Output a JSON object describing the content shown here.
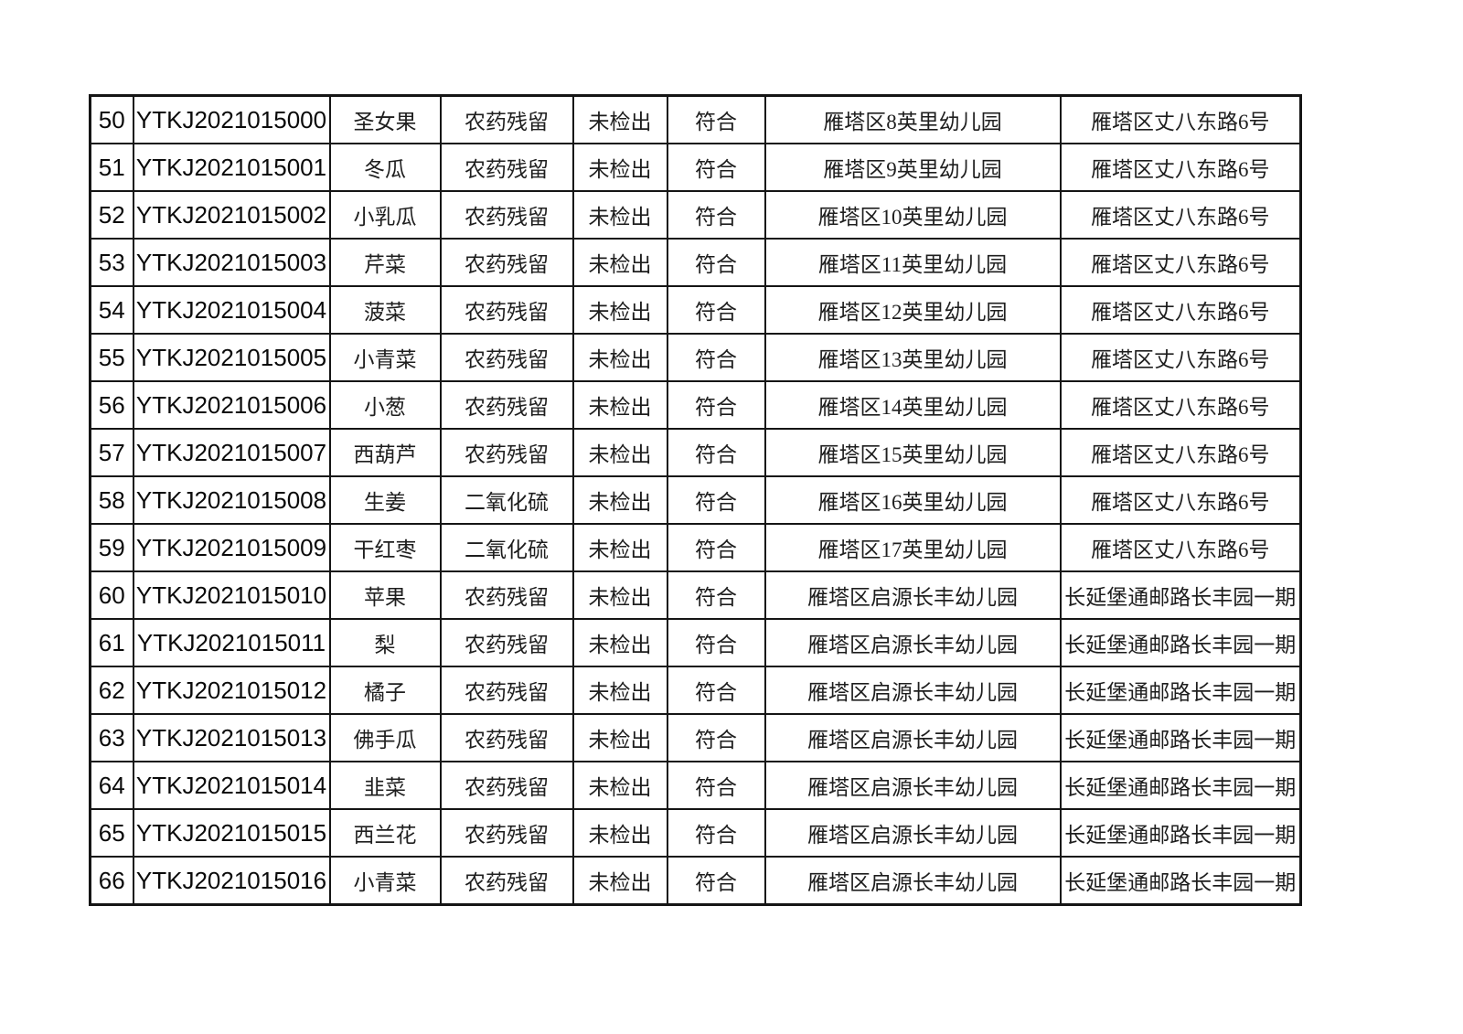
{
  "colors": {
    "background": "#ffffff",
    "table_border": "#151515",
    "text": "#1e1e1e"
  },
  "table": {
    "rows": [
      [
        "50",
        "YTKJ2021015000",
        "圣女果",
        "农药残留",
        "未检出",
        "符合",
        "雁塔区8英里幼儿园",
        "雁塔区丈八东路6号"
      ],
      [
        "51",
        "YTKJ2021015001",
        "冬瓜",
        "农药残留",
        "未检出",
        "符合",
        "雁塔区9英里幼儿园",
        "雁塔区丈八东路6号"
      ],
      [
        "52",
        "YTKJ2021015002",
        "小乳瓜",
        "农药残留",
        "未检出",
        "符合",
        "雁塔区10英里幼儿园",
        "雁塔区丈八东路6号"
      ],
      [
        "53",
        "YTKJ2021015003",
        "芹菜",
        "农药残留",
        "未检出",
        "符合",
        "雁塔区11英里幼儿园",
        "雁塔区丈八东路6号"
      ],
      [
        "54",
        "YTKJ2021015004",
        "菠菜",
        "农药残留",
        "未检出",
        "符合",
        "雁塔区12英里幼儿园",
        "雁塔区丈八东路6号"
      ],
      [
        "55",
        "YTKJ2021015005",
        "小青菜",
        "农药残留",
        "未检出",
        "符合",
        "雁塔区13英里幼儿园",
        "雁塔区丈八东路6号"
      ],
      [
        "56",
        "YTKJ2021015006",
        "小葱",
        "农药残留",
        "未检出",
        "符合",
        "雁塔区14英里幼儿园",
        "雁塔区丈八东路6号"
      ],
      [
        "57",
        "YTKJ2021015007",
        "西葫芦",
        "农药残留",
        "未检出",
        "符合",
        "雁塔区15英里幼儿园",
        "雁塔区丈八东路6号"
      ],
      [
        "58",
        "YTKJ2021015008",
        "生姜",
        "二氧化硫",
        "未检出",
        "符合",
        "雁塔区16英里幼儿园",
        "雁塔区丈八东路6号"
      ],
      [
        "59",
        "YTKJ2021015009",
        "干红枣",
        "二氧化硫",
        "未检出",
        "符合",
        "雁塔区17英里幼儿园",
        "雁塔区丈八东路6号"
      ],
      [
        "60",
        "YTKJ2021015010",
        "苹果",
        "农药残留",
        "未检出",
        "符合",
        "雁塔区启源长丰幼儿园",
        "长延堡通邮路长丰园一期"
      ],
      [
        "61",
        "YTKJ2021015011",
        "梨",
        "农药残留",
        "未检出",
        "符合",
        "雁塔区启源长丰幼儿园",
        "长延堡通邮路长丰园一期"
      ],
      [
        "62",
        "YTKJ2021015012",
        "橘子",
        "农药残留",
        "未检出",
        "符合",
        "雁塔区启源长丰幼儿园",
        "长延堡通邮路长丰园一期"
      ],
      [
        "63",
        "YTKJ2021015013",
        "佛手瓜",
        "农药残留",
        "未检出",
        "符合",
        "雁塔区启源长丰幼儿园",
        "长延堡通邮路长丰园一期"
      ],
      [
        "64",
        "YTKJ2021015014",
        "韭菜",
        "农药残留",
        "未检出",
        "符合",
        "雁塔区启源长丰幼儿园",
        "长延堡通邮路长丰园一期"
      ],
      [
        "65",
        "YTKJ2021015015",
        "西兰花",
        "农药残留",
        "未检出",
        "符合",
        "雁塔区启源长丰幼儿园",
        "长延堡通邮路长丰园一期"
      ],
      [
        "66",
        "YTKJ2021015016",
        "小青菜",
        "农药残留",
        "未检出",
        "符合",
        "雁塔区启源长丰幼儿园",
        "长延堡通邮路长丰园一期"
      ]
    ]
  }
}
